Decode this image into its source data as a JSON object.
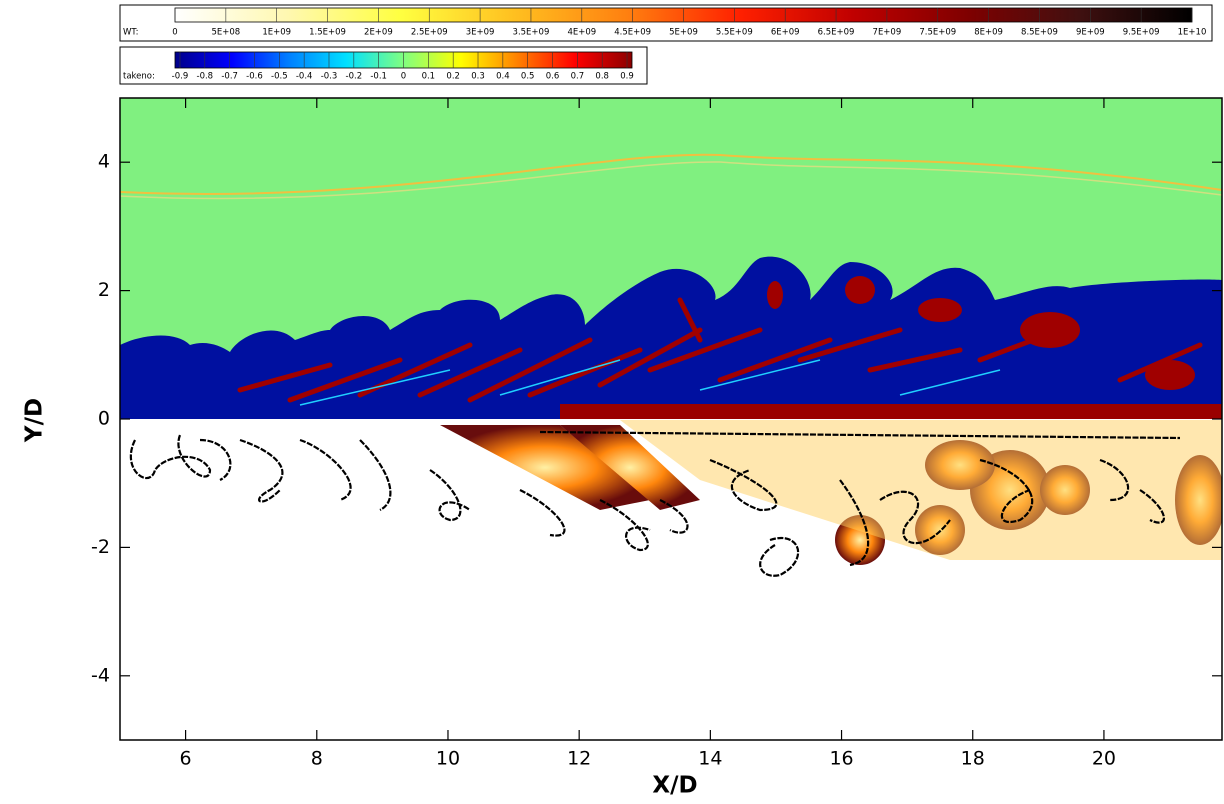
{
  "chart_data": {
    "type": "contour",
    "x_label": "X/D",
    "y_label": "Y/D",
    "xlim": [
      5,
      21.8
    ],
    "ylim": [
      -5,
      5
    ],
    "xticks": [
      6,
      8,
      10,
      12,
      14,
      16,
      18,
      20
    ],
    "yticks": [
      -4,
      -2,
      0,
      2,
      4
    ],
    "colorbars": [
      {
        "name": "WT:",
        "lim": [
          0,
          10000000000
        ],
        "colors": [
          "#ffffff",
          "#fff8b0",
          "#ffff40",
          "#ffc020",
          "#ff8010",
          "#ff2000",
          "#c00000",
          "#800000",
          "#401010",
          "#000000"
        ],
        "ticks": [
          0,
          {
            "value": 500000000,
            "label": "5E+08"
          },
          {
            "value": 1000000000,
            "label": "1E+09"
          },
          {
            "value": 1500000000,
            "label": "1.5E+09"
          },
          {
            "value": 2000000000,
            "label": "2E+09"
          },
          {
            "value": 2500000000,
            "label": "2.5E+09"
          },
          {
            "value": 3000000000,
            "label": "3E+09"
          },
          {
            "value": 3500000000,
            "label": "3.5E+09"
          },
          {
            "value": 4000000000,
            "label": "4E+09"
          },
          {
            "value": 4500000000,
            "label": "4.5E+09"
          },
          {
            "value": 5000000000,
            "label": "5E+09"
          },
          {
            "value": 5500000000,
            "label": "5.5E+09"
          },
          {
            "value": 6000000000,
            "label": "6E+09"
          },
          {
            "value": 6500000000,
            "label": "6.5E+09"
          },
          {
            "value": 7000000000,
            "label": "7E+09"
          },
          {
            "value": 7500000000,
            "label": "7.5E+09"
          },
          {
            "value": 8000000000,
            "label": "8E+09"
          },
          {
            "value": 8500000000,
            "label": "8.5E+09"
          },
          {
            "value": 9000000000,
            "label": "9E+09"
          },
          {
            "value": 9500000000,
            "label": "9.5E+09"
          },
          {
            "value": 10000000000,
            "label": "1E+10"
          }
        ]
      },
      {
        "name": "takeno:",
        "lim": [
          -0.92,
          0.92
        ],
        "colors": [
          "#00008a",
          "#0000ff",
          "#0080ff",
          "#00e0ff",
          "#80ff80",
          "#ffff00",
          "#ff8000",
          "#ff0000",
          "#8a0000"
        ],
        "ticks": [
          -0.9,
          -0.8,
          -0.7,
          -0.6,
          -0.5,
          -0.4,
          -0.3,
          -0.2,
          -0.1,
          0,
          0.1,
          0.2,
          0.3,
          0.4,
          0.5,
          0.6,
          0.7,
          0.8,
          0.9
        ]
      }
    ]
  }
}
